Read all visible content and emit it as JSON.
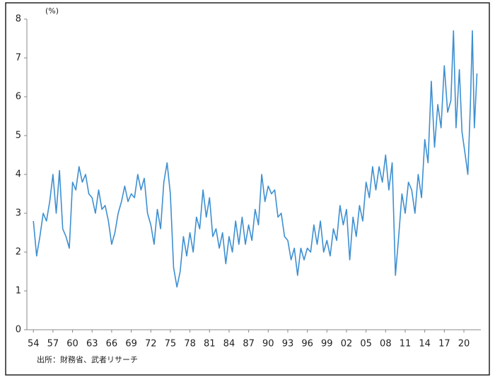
{
  "chart_data": {
    "type": "line",
    "unit_label": "(%)",
    "source": "出所：財務省、武者リサーチ",
    "x": [
      1954,
      1954.5,
      1955,
      1955.5,
      1956,
      1956.5,
      1957,
      1957.5,
      1958,
      1958.5,
      1959,
      1959.5,
      1960,
      1960.5,
      1961,
      1961.5,
      1962,
      1962.5,
      1963,
      1963.5,
      1964,
      1964.5,
      1965,
      1965.5,
      1966,
      1966.5,
      1967,
      1967.5,
      1968,
      1968.5,
      1969,
      1969.5,
      1970,
      1970.5,
      1971,
      1971.5,
      1972,
      1972.5,
      1973,
      1973.5,
      1974,
      1974.5,
      1975,
      1975.5,
      1976,
      1976.5,
      1977,
      1977.5,
      1978,
      1978.5,
      1979,
      1979.5,
      1980,
      1980.5,
      1981,
      1981.5,
      1982,
      1982.5,
      1983,
      1983.5,
      1984,
      1984.5,
      1985,
      1985.5,
      1986,
      1986.5,
      1987,
      1987.5,
      1988,
      1988.5,
      1989,
      1989.5,
      1990,
      1990.5,
      1991,
      1991.5,
      1992,
      1992.5,
      1993,
      1993.5,
      1994,
      1994.5,
      1995,
      1995.5,
      1996,
      1996.5,
      1997,
      1997.5,
      1998,
      1998.5,
      1999,
      1999.5,
      2000,
      2000.5,
      2001,
      2001.5,
      2002,
      2002.5,
      2003,
      2003.5,
      2004,
      2004.5,
      2005,
      2005.5,
      2006,
      2006.5,
      2007,
      2007.5,
      2008,
      2008.5,
      2009,
      2009.5,
      2010,
      2010.5,
      2011,
      2011.5,
      2012,
      2012.5,
      2013,
      2013.5,
      2014,
      2014.5,
      2015,
      2015.5,
      2016,
      2016.5,
      2017,
      2017.5,
      2018,
      2018.4,
      2018.8,
      2019.3,
      2019.7,
      2020.2,
      2020.6,
      2021,
      2021.3,
      2021.6,
      2022
    ],
    "series": [
      {
        "color": "#3d8fd1",
        "values": [
          2.8,
          1.9,
          2.4,
          3.0,
          2.8,
          3.3,
          4.0,
          3.0,
          4.1,
          2.6,
          2.4,
          2.1,
          3.8,
          3.6,
          4.2,
          3.8,
          4.0,
          3.5,
          3.4,
          3.0,
          3.6,
          3.1,
          3.2,
          2.8,
          2.2,
          2.5,
          3.0,
          3.3,
          3.7,
          3.3,
          3.5,
          3.4,
          4.0,
          3.6,
          3.9,
          3.0,
          2.7,
          2.2,
          3.1,
          2.6,
          3.8,
          4.3,
          3.5,
          1.6,
          1.1,
          1.5,
          2.4,
          1.9,
          2.5,
          2.0,
          2.9,
          2.6,
          3.6,
          2.9,
          3.4,
          2.4,
          2.6,
          2.1,
          2.5,
          1.7,
          2.4,
          2.0,
          2.8,
          2.2,
          2.9,
          2.2,
          2.7,
          2.3,
          3.1,
          2.7,
          4.0,
          3.3,
          3.7,
          3.5,
          3.6,
          2.9,
          3.0,
          2.4,
          2.3,
          1.8,
          2.1,
          1.4,
          2.1,
          1.8,
          2.1,
          2.0,
          2.7,
          2.2,
          2.8,
          2.0,
          2.3,
          1.9,
          2.6,
          2.3,
          3.2,
          2.7,
          3.1,
          1.8,
          2.9,
          2.4,
          3.2,
          2.8,
          3.8,
          3.4,
          4.2,
          3.6,
          4.2,
          3.8,
          4.5,
          3.6,
          4.3,
          1.4,
          2.4,
          3.5,
          3.0,
          3.8,
          3.6,
          3.0,
          4.0,
          3.4,
          4.9,
          4.3,
          6.4,
          4.7,
          5.8,
          5.2,
          6.8,
          5.6,
          5.9,
          7.7,
          5.2,
          6.7,
          5.1,
          4.5,
          4.0,
          5.8,
          7.7,
          5.2,
          6.6
        ]
      }
    ],
    "xlim": [
      1953,
      2022.6
    ],
    "ylim": [
      0,
      8
    ],
    "yticks": [
      0,
      1,
      2,
      3,
      4,
      5,
      6,
      7,
      8
    ],
    "xticks": [
      {
        "value": 1954,
        "label": "54"
      },
      {
        "value": 1957,
        "label": "57"
      },
      {
        "value": 1960,
        "label": "60"
      },
      {
        "value": 1963,
        "label": "63"
      },
      {
        "value": 1966,
        "label": "66"
      },
      {
        "value": 1969,
        "label": "69"
      },
      {
        "value": 1972,
        "label": "72"
      },
      {
        "value": 1975,
        "label": "75"
      },
      {
        "value": 1978,
        "label": "78"
      },
      {
        "value": 1981,
        "label": "81"
      },
      {
        "value": 1984,
        "label": "84"
      },
      {
        "value": 1987,
        "label": "87"
      },
      {
        "value": 1990,
        "label": "90"
      },
      {
        "value": 1993,
        "label": "93"
      },
      {
        "value": 1996,
        "label": "96"
      },
      {
        "value": 1999,
        "label": "99"
      },
      {
        "value": 2002,
        "label": "02"
      },
      {
        "value": 2005,
        "label": "05"
      },
      {
        "value": 2008,
        "label": "08"
      },
      {
        "value": 2011,
        "label": "11"
      },
      {
        "value": 2014,
        "label": "14"
      },
      {
        "value": 2017,
        "label": "17"
      },
      {
        "value": 2020,
        "label": "20"
      }
    ]
  }
}
